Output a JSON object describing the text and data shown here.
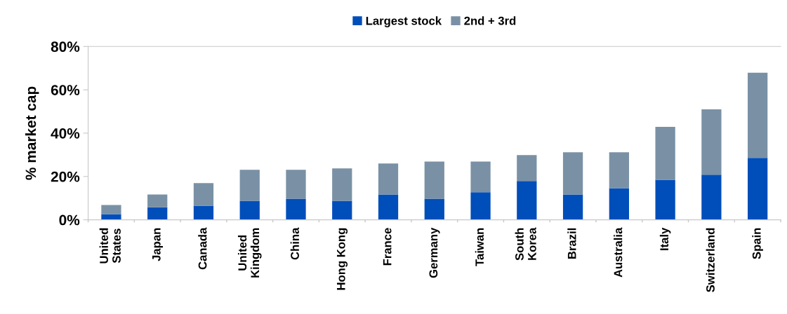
{
  "chart_data": {
    "type": "bar",
    "stacked": true,
    "ylabel": "% market cap",
    "categories": [
      "United\nStates",
      "Japan",
      "Canada",
      "United\nKingdom",
      "China",
      "Hong Kong",
      "France",
      "Germany",
      "Taiwan",
      "South\nKorea",
      "Brazil",
      "Australia",
      "Italy",
      "Switzerland",
      "Spain"
    ],
    "series": [
      {
        "name": "Largest stock",
        "color": "#004eba",
        "values": [
          2.6,
          5.8,
          6.5,
          8.8,
          9.7,
          8.8,
          11.7,
          9.7,
          12.7,
          17.9,
          11.7,
          14.6,
          18.5,
          20.8,
          28.6
        ]
      },
      {
        "name": "2nd + 3rd",
        "color": "#7a91a5",
        "values": [
          4.2,
          5.9,
          10.4,
          14.3,
          13.4,
          14.9,
          14.3,
          17.2,
          14.2,
          12.0,
          19.5,
          16.6,
          24.4,
          30.2,
          39.3
        ]
      }
    ],
    "ylim": [
      0,
      80
    ],
    "yticks": [
      {
        "value": 0,
        "label": "0%"
      },
      {
        "value": 20,
        "label": "20%"
      },
      {
        "value": 40,
        "label": "40%"
      },
      {
        "value": 60,
        "label": "60%"
      },
      {
        "value": 80,
        "label": "80%"
      }
    ],
    "legend": "top",
    "grid": false
  }
}
